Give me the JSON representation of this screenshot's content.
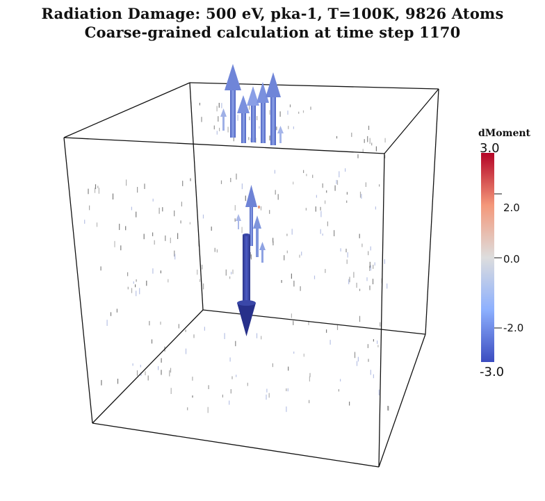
{
  "title": {
    "line1": "Radiation Damage: 500 eV, pka-1, T=100K, 9826 Atoms",
    "line2": "Coarse-grained calculation at time step 1170"
  },
  "colorbar": {
    "title": "dMoment",
    "max_label": "3.0",
    "min_label": "-3.0",
    "ticks": [
      "2.0",
      "0.0",
      "-2.0"
    ],
    "range": [
      -3.0,
      3.0
    ],
    "colormap": [
      "#3b4cc0",
      "#8db0fe",
      "#dddddd",
      "#f4987a",
      "#b40426"
    ]
  },
  "box_color": "#111111"
}
